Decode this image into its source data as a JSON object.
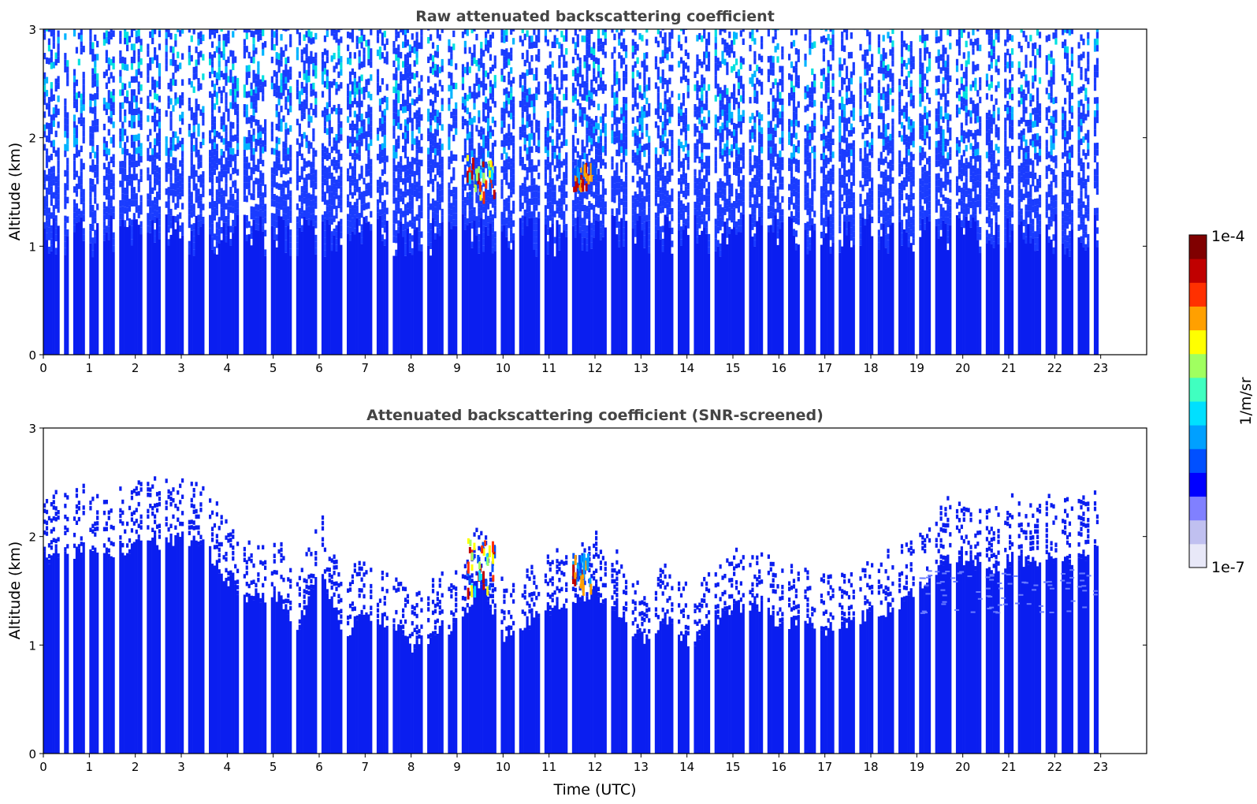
{
  "chart_data": [
    {
      "type": "heatmap",
      "title": "Raw attenuated backscattering coefficient",
      "xlabel": "",
      "ylabel": "Altitude (km)",
      "xlim": [
        0,
        24
      ],
      "ylim": [
        0,
        3
      ],
      "xticks": [
        "0",
        "1",
        "2",
        "3",
        "4",
        "5",
        "6",
        "7",
        "8",
        "9",
        "10",
        "11",
        "12",
        "13",
        "14",
        "15",
        "16",
        "17",
        "18",
        "19",
        "20",
        "21",
        "22",
        "23"
      ],
      "yticks": [
        "0",
        "1",
        "2",
        "3"
      ],
      "data_end_hour": 22.95,
      "data_gaps_hours": [
        0.4,
        0.6,
        0.95,
        1.25,
        1.6,
        2.2,
        2.6,
        3.1,
        3.55,
        4.3,
        4.9,
        5.45,
        6.0,
        6.55,
        7.2,
        7.55,
        8.3,
        8.75,
        9.05,
        9.9,
        10.3,
        10.85,
        11.45,
        12.3,
        12.75,
        13.25,
        13.75,
        14.1,
        14.55,
        15.3,
        15.7,
        16.15,
        16.5,
        16.85,
        17.25,
        17.7,
        18.1,
        18.55,
        19.0,
        19.35,
        19.8,
        20.45,
        20.85,
        21.15,
        21.75,
        22.1,
        22.45,
        22.8
      ],
      "profile": [
        {
          "altitude_km": 0.0,
          "backscatter": "1e-6 to 3e-6",
          "coverage": 1.0
        },
        {
          "altitude_km": 1.0,
          "backscatter": "~1e-6",
          "coverage": 0.8
        },
        {
          "altitude_km": 2.0,
          "backscatter": "1e-6 to 1e-5 (noise)",
          "coverage": 0.45
        },
        {
          "altitude_km": 3.0,
          "backscatter": "1e-6 to 1e-5 (noise)",
          "coverage": 0.35
        }
      ],
      "features": [
        {
          "label": "cloud",
          "time_start_utc": 9.2,
          "time_end_utc": 9.8,
          "alt_bottom_km": 1.5,
          "alt_top_km": 1.9,
          "peak_backscatter": "1e-4"
        },
        {
          "label": "cloud",
          "time_start_utc": 11.5,
          "time_end_utc": 12.0,
          "alt_bottom_km": 1.55,
          "alt_top_km": 1.8,
          "peak_backscatter": "5e-5"
        }
      ]
    },
    {
      "type": "heatmap",
      "title": "Attenuated backscattering coefficient (SNR-screened)",
      "xlabel": "Time (UTC)",
      "ylabel": "Altitude (km)",
      "xlim": [
        0,
        24
      ],
      "ylim": [
        0,
        3
      ],
      "xticks": [
        "0",
        "1",
        "2",
        "3",
        "4",
        "5",
        "6",
        "7",
        "8",
        "9",
        "10",
        "11",
        "12",
        "13",
        "14",
        "15",
        "16",
        "17",
        "18",
        "19",
        "20",
        "21",
        "22",
        "23"
      ],
      "yticks": [
        "0",
        "1",
        "2",
        "3"
      ],
      "data_end_hour": 22.95,
      "layer_top_km": {
        "time_utc": [
          0,
          0.5,
          1,
          1.5,
          2,
          2.5,
          3,
          3.5,
          4,
          4.5,
          5,
          5.5,
          6,
          6.5,
          7,
          7.5,
          8,
          8.5,
          9,
          9.5,
          10,
          10.5,
          11,
          11.5,
          12,
          12.5,
          13,
          13.5,
          14,
          14.5,
          15,
          15.5,
          16,
          16.5,
          17,
          17.5,
          18,
          18.5,
          19,
          19.5,
          20,
          20.5,
          21,
          21.5,
          22,
          22.5,
          22.95
        ],
        "altitude_km": [
          1.8,
          1.85,
          1.9,
          1.85,
          1.9,
          1.95,
          2.0,
          1.9,
          1.6,
          1.4,
          1.5,
          1.15,
          1.7,
          1.1,
          1.3,
          1.2,
          1.0,
          1.1,
          1.2,
          1.6,
          1.1,
          1.2,
          1.35,
          1.4,
          1.5,
          1.3,
          1.05,
          1.25,
          1.0,
          1.2,
          1.35,
          1.4,
          1.2,
          1.25,
          1.15,
          1.2,
          1.3,
          1.35,
          1.5,
          1.75,
          1.8,
          1.7,
          1.8,
          1.75,
          1.8,
          1.8,
          1.85
        ]
      },
      "features": [
        {
          "label": "cloud",
          "time_start_utc": 9.2,
          "time_end_utc": 9.8,
          "alt_bottom_km": 1.5,
          "alt_top_km": 2.0,
          "peak_backscatter": "1e-4"
        },
        {
          "label": "cloud",
          "time_start_utc": 11.5,
          "time_end_utc": 11.9,
          "alt_bottom_km": 1.55,
          "alt_top_km": 1.85,
          "peak_backscatter": "5e-5"
        }
      ]
    }
  ],
  "colorbar": {
    "label": "1/m/sr",
    "max_label": "1e-4",
    "min_label": "1e-7",
    "scale": "log",
    "colormap": [
      "#e8e8f8",
      "#c0c0f0",
      "#8080ff",
      "#0000ff",
      "#0050ff",
      "#00a0ff",
      "#00e0ff",
      "#40ffc0",
      "#a0ff60",
      "#ffff00",
      "#ffa000",
      "#ff3000",
      "#c00000",
      "#800000"
    ]
  },
  "colors": {
    "background_signal": "#0a1ef0",
    "noise": "#1a3cff"
  }
}
